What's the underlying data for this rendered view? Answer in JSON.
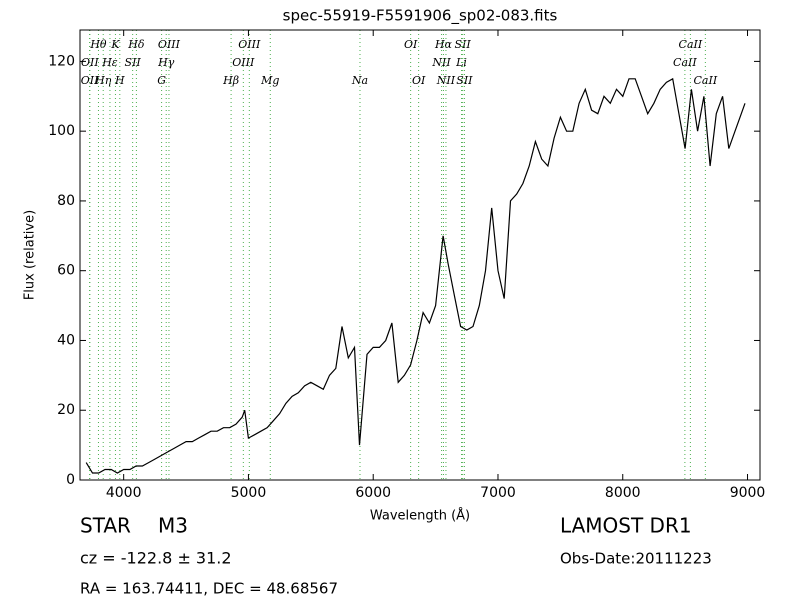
{
  "chart_data": {
    "type": "line",
    "title": "spec-55919-F5591906_sp02-083.fits",
    "x_label": "Wavelength (Å)",
    "y_label": "Flux (relative)",
    "x": [
      3700,
      3750,
      3800,
      3850,
      3900,
      3950,
      4000,
      4050,
      4100,
      4150,
      4200,
      4250,
      4300,
      4350,
      4400,
      4450,
      4500,
      4550,
      4600,
      4650,
      4700,
      4750,
      4800,
      4850,
      4900,
      4950,
      4970,
      5000,
      5050,
      5100,
      5150,
      5200,
      5250,
      5300,
      5350,
      5400,
      5450,
      5500,
      5550,
      5600,
      5650,
      5700,
      5750,
      5800,
      5850,
      5890,
      5950,
      6000,
      6050,
      6100,
      6150,
      6200,
      6250,
      6300,
      6350,
      6400,
      6450,
      6500,
      6560,
      6600,
      6650,
      6700,
      6750,
      6800,
      6850,
      6900,
      6950,
      7000,
      7050,
      7100,
      7150,
      7200,
      7250,
      7300,
      7350,
      7400,
      7450,
      7500,
      7550,
      7600,
      7650,
      7700,
      7750,
      7800,
      7850,
      7900,
      7950,
      8000,
      8050,
      8100,
      8150,
      8200,
      8250,
      8300,
      8350,
      8400,
      8450,
      8500,
      8550,
      8600,
      8650,
      8700,
      8750,
      8800,
      8850,
      8900,
      8950,
      8980
    ],
    "values": [
      5,
      2,
      2,
      3,
      3,
      2,
      3,
      3,
      4,
      4,
      5,
      6,
      7,
      8,
      9,
      10,
      11,
      11,
      12,
      13,
      14,
      14,
      15,
      15,
      16,
      18,
      20,
      12,
      13,
      14,
      15,
      17,
      19,
      22,
      24,
      25,
      27,
      28,
      27,
      26,
      30,
      32,
      44,
      35,
      38,
      10,
      36,
      38,
      38,
      40,
      45,
      28,
      30,
      33,
      40,
      48,
      45,
      50,
      70,
      62,
      53,
      44,
      43,
      44,
      50,
      60,
      78,
      60,
      52,
      80,
      82,
      85,
      90,
      97,
      92,
      90,
      98,
      104,
      100,
      100,
      108,
      112,
      106,
      105,
      110,
      108,
      112,
      110,
      115,
      115,
      110,
      105,
      108,
      112,
      114,
      115,
      105,
      95,
      112,
      100,
      110,
      90,
      105,
      110,
      95,
      100,
      105,
      108
    ],
    "color": "#000000",
    "xlim": [
      3650,
      9100
    ],
    "ylim": [
      0,
      129
    ],
    "xticks": [
      4000,
      5000,
      6000,
      7000,
      8000,
      9000
    ],
    "yticks": [
      0,
      20,
      40,
      60,
      80,
      100,
      120
    ],
    "line_color": "#4caf50",
    "lines": [
      {
        "x": 3727,
        "label": "OII"
      },
      {
        "x": 3729,
        "label": "OII"
      },
      {
        "x": 3798,
        "label": "Hθ"
      },
      {
        "x": 3836,
        "label": "Hη"
      },
      {
        "x": 3890,
        "label": "Hε"
      },
      {
        "x": 3934,
        "label": "K"
      },
      {
        "x": 3969,
        "label": "H"
      },
      {
        "x": 4072,
        "label": "SII"
      },
      {
        "x": 4102,
        "label": "Hδ"
      },
      {
        "x": 4304,
        "label": "G"
      },
      {
        "x": 4341,
        "label": "Hγ"
      },
      {
        "x": 4363,
        "label": "OIII"
      },
      {
        "x": 4861,
        "label": "Hβ"
      },
      {
        "x": 4959,
        "label": "OIII"
      },
      {
        "x": 5007,
        "label": "OIII"
      },
      {
        "x": 5175,
        "label": "Mg"
      },
      {
        "x": 5894,
        "label": "Na"
      },
      {
        "x": 6300,
        "label": "OI"
      },
      {
        "x": 6364,
        "label": "OI"
      },
      {
        "x": 6548,
        "label": "NII"
      },
      {
        "x": 6563,
        "label": "Hα"
      },
      {
        "x": 6583,
        "label": "NII"
      },
      {
        "x": 6708,
        "label": "Li"
      },
      {
        "x": 6717,
        "label": "SII"
      },
      {
        "x": 6731,
        "label": "SII"
      },
      {
        "x": 8498,
        "label": "CaII"
      },
      {
        "x": 8542,
        "label": "CaII"
      },
      {
        "x": 8662,
        "label": "CaII"
      }
    ]
  },
  "footer": {
    "object_class": "STAR",
    "subclass": "M3",
    "redshift": "cz = -122.8 ± 31.2",
    "coords": "RA = 163.74411, DEC = 48.68567",
    "survey": "LAMOST DR1",
    "obs_date": "Obs-Date:20111223"
  }
}
